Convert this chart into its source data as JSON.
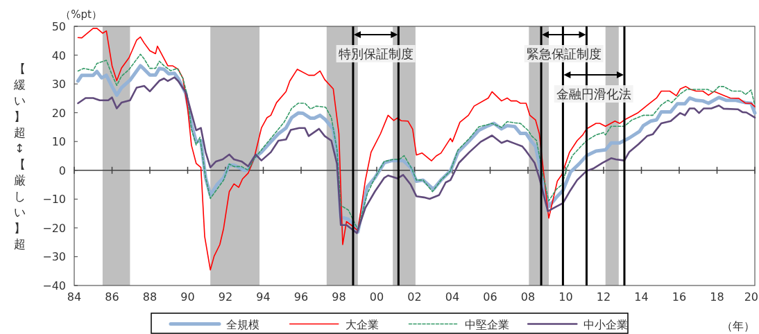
{
  "chart_data": {
    "type": "line",
    "xlabel": "（年）",
    "ylabel": "【緩い】超↕【厳しい】超",
    "annotations": [
      "（%pt）"
    ],
    "xlim": [
      1984,
      2020
    ],
    "ylim": [
      -40,
      50
    ],
    "xticks": [
      {
        "value": 1984,
        "label": "84"
      },
      {
        "value": 1986,
        "label": "86"
      },
      {
        "value": 1988,
        "label": "88"
      },
      {
        "value": 1990,
        "label": "90"
      },
      {
        "value": 1992,
        "label": "92"
      },
      {
        "value": 1994,
        "label": "94"
      },
      {
        "value": 1996,
        "label": "96"
      },
      {
        "value": 1998,
        "label": "98"
      },
      {
        "value": 2000,
        "label": "00"
      },
      {
        "value": 2002,
        "label": "02"
      },
      {
        "value": 2004,
        "label": "04"
      },
      {
        "value": 2006,
        "label": "06"
      },
      {
        "value": 2008,
        "label": "08"
      },
      {
        "value": 2010,
        "label": "10"
      },
      {
        "value": 2012,
        "label": "12"
      },
      {
        "value": 2014,
        "label": "14"
      },
      {
        "value": 2016,
        "label": "16"
      },
      {
        "value": 2018,
        "label": "18"
      },
      {
        "value": 2020,
        "label": "20"
      }
    ],
    "yticks": [
      {
        "value": -40,
        "label": "−40"
      },
      {
        "value": -30,
        "label": "−30"
      },
      {
        "value": -20,
        "label": "−20"
      },
      {
        "value": -10,
        "label": "−10"
      },
      0,
      10,
      20,
      30,
      40,
      50
    ],
    "legend": "bottom",
    "bands": [
      {
        "axis": "x",
        "from": 1985.5,
        "to": 1986.95,
        "color": "#bfbfbf"
      },
      {
        "axis": "x",
        "from": 1991.2,
        "to": 1993.8,
        "color": "#bfbfbf"
      },
      {
        "axis": "x",
        "from": 1997.35,
        "to": 1999.0,
        "color": "#bfbfbf"
      },
      {
        "axis": "x",
        "from": 2000.85,
        "to": 2002.05,
        "color": "#bfbfbf"
      },
      {
        "axis": "x",
        "from": 2008.05,
        "to": 2009.1,
        "color": "#bfbfbf"
      },
      {
        "axis": "x",
        "from": 2012.1,
        "to": 2012.8,
        "color": "#bfbfbf"
      }
    ],
    "ref_lines": [
      {
        "axis": "x",
        "value": 1998.75,
        "label": "特別保証制度",
        "color": "#000000"
      },
      {
        "axis": "x",
        "value": 2001.15,
        "color": "#000000"
      },
      {
        "axis": "x",
        "value": 2008.7,
        "label": "緊急保証制度",
        "color": "#000000"
      },
      {
        "axis": "x",
        "value": 2009.85,
        "label": "金融円滑化法",
        "color": "#000000"
      },
      {
        "axis": "x",
        "value": 2011.1,
        "color": "#000000"
      },
      {
        "axis": "x",
        "value": 2013.1,
        "color": "#000000"
      }
    ],
    "series": [
      {
        "name": "全規模",
        "color": "#95b3d7",
        "line_style": "solid",
        "x": [
          1984.2,
          1984.4,
          1985.0,
          1985.2,
          1985.45,
          1985.7,
          1986.0,
          1986.25,
          1986.5,
          1986.95,
          1987.5,
          1987.7,
          1988.0,
          1988.3,
          1988.5,
          1988.75,
          1989.0,
          1989.3,
          1989.5,
          1989.9,
          1990.2,
          1990.45,
          1990.7,
          1990.95,
          1991.2,
          1991.55,
          1991.9,
          1992.2,
          1992.45,
          1992.7,
          1993.0,
          1993.2,
          1993.5,
          1993.9,
          1994.4,
          1994.8,
          1995.2,
          1995.5,
          1995.85,
          1996.1,
          1996.5,
          1996.7,
          1997.0,
          1997.3,
          1997.7,
          1997.9,
          1998.1,
          1998.5,
          1998.8,
          1999.0,
          1999.5,
          1999.9,
          2000.4,
          2000.8,
          2001.4,
          2001.8,
          2002.1,
          2002.45,
          2003.0,
          2003.4,
          2003.9,
          2004.3,
          2004.9,
          2005.4,
          2005.9,
          2006.2,
          2006.6,
          2006.9,
          2007.3,
          2007.6,
          2007.9,
          2008.15,
          2008.4,
          2008.75,
          2009.1,
          2009.5,
          2009.85,
          2010.25,
          2010.7,
          2011.1,
          2011.6,
          2012.1,
          2012.4,
          2012.85,
          2013.35,
          2013.9,
          2014.1,
          2014.5,
          2014.8,
          2015.05,
          2015.55,
          2015.9,
          2016.3,
          2016.55,
          2016.9,
          2017.25,
          2017.55,
          2018.1,
          2018.5,
          2019.0,
          2019.5,
          2019.8,
          2020.0
        ],
        "values": [
          31.0,
          33.0,
          33.0,
          34.3,
          32.1,
          33.0,
          29.1,
          26.1,
          28.7,
          31.3,
          36.3,
          35.1,
          33.1,
          33.1,
          35.4,
          35.1,
          33.5,
          33.7,
          31.9,
          26.7,
          15.9,
          9.9,
          10.3,
          -2.6,
          -8.6,
          -5.0,
          -2.6,
          1.8,
          1.8,
          1.0,
          0,
          0.2,
          4.2,
          6.3,
          9.9,
          12.7,
          14.7,
          18.3,
          19.9,
          19.8,
          18.1,
          18.1,
          19.1,
          17.5,
          14.3,
          5.5,
          -16.2,
          -17.0,
          -19.0,
          -21.4,
          -5.8,
          -2.6,
          2.6,
          3.4,
          3.4,
          1.0,
          -3.8,
          -3.4,
          -6.6,
          -3.4,
          -0.2,
          6.3,
          10.3,
          13.9,
          15.5,
          16.3,
          14.4,
          15.5,
          15.2,
          12.8,
          12.8,
          10.3,
          8.3,
          -2.6,
          -12.6,
          -9.4,
          -7.0,
          -0.6,
          2.2,
          5.1,
          6.7,
          7.1,
          9.5,
          9.5,
          11.2,
          13.5,
          15.5,
          17.1,
          17.5,
          20.3,
          20.3,
          23.1,
          23.1,
          25.1,
          24.3,
          24.1,
          23.3,
          25.3,
          24.3,
          24.3,
          23.5,
          23.3,
          19.9
        ]
      },
      {
        "name": "大企業",
        "color": "#ff0000",
        "line_style": "solid",
        "x": [
          1984.2,
          1984.4,
          1985.0,
          1985.2,
          1985.5,
          1985.7,
          1986.0,
          1986.25,
          1986.5,
          1986.9,
          1987.3,
          1987.5,
          1987.7,
          1988.0,
          1988.3,
          1988.4,
          1988.95,
          1989.2,
          1989.5,
          1989.75,
          1990.0,
          1990.2,
          1990.45,
          1990.7,
          1990.9,
          1991.2,
          1991.4,
          1991.7,
          1991.9,
          1992.2,
          1992.45,
          1992.7,
          1992.9,
          1993.2,
          1993.5,
          1993.9,
          1994.2,
          1994.4,
          1994.7,
          1995.2,
          1995.4,
          1995.8,
          1996.4,
          1996.7,
          1997.0,
          1997.25,
          1997.7,
          1998.0,
          1998.2,
          1998.4,
          1998.8,
          1999.0,
          1999.4,
          1999.7,
          2000.2,
          2000.6,
          2000.9,
          2001.1,
          2001.3,
          2001.65,
          2001.9,
          2002.1,
          2002.4,
          2002.9,
          2003.15,
          2003.4,
          2003.9,
          2004.0,
          2004.4,
          2004.85,
          2005.15,
          2005.9,
          2006.1,
          2006.6,
          2006.9,
          2007.1,
          2007.4,
          2007.6,
          2007.9,
          2008.1,
          2008.4,
          2008.6,
          2008.75,
          2009.1,
          2009.55,
          2009.8,
          2010.2,
          2010.6,
          2010.9,
          2011.1,
          2011.6,
          2011.8,
          2012.1,
          2012.6,
          2012.85,
          2013.1,
          2013.8,
          2014.4,
          2014.8,
          2015.05,
          2015.5,
          2015.85,
          2016.06,
          2016.35,
          2016.6,
          2016.9,
          2017.25,
          2017.55,
          2017.85,
          2018.4,
          2018.7,
          2019.15,
          2019.5,
          2019.8,
          2020.0
        ],
        "values": [
          46.1,
          46,
          49.3,
          49.3,
          47.6,
          48.4,
          36.3,
          31.1,
          35.5,
          39.1,
          45.2,
          46.3,
          44.2,
          41.5,
          40.5,
          43.1,
          36.3,
          36.3,
          35.1,
          31.9,
          21.5,
          8.7,
          2.4,
          1.0,
          -23,
          -34.6,
          -29.8,
          -25.8,
          -20.2,
          -7.4,
          -4.7,
          -5.9,
          -3.0,
          -1.0,
          3.8,
          14.7,
          18.3,
          19.1,
          23.5,
          27.3,
          31,
          35.1,
          33,
          33,
          34.5,
          31.5,
          28.3,
          12.7,
          -25.8,
          -17.8,
          -19.8,
          -21,
          -3.4,
          6.3,
          12.7,
          19.1,
          17.3,
          18.2,
          17.2,
          17.1,
          14.3,
          5.3,
          6.0,
          3.3,
          5.0,
          6.0,
          11.1,
          9.9,
          16.7,
          19.1,
          22.3,
          25.1,
          27.3,
          24.1,
          25.1,
          24.1,
          24.1,
          23.3,
          23.3,
          19.1,
          17.5,
          12.7,
          3.8,
          -16.6,
          -3.8,
          -1.4,
          6.3,
          10.3,
          12.3,
          14.4,
          16.3,
          16.3,
          15.3,
          17.1,
          16.3,
          17.5,
          19.9,
          23.1,
          25.1,
          27.5,
          27.5,
          25.9,
          28.3,
          29.1,
          28.1,
          27.5,
          27.5,
          26.1,
          27.4,
          25.9,
          25.1,
          25.0,
          23.3,
          23.3,
          22.1
        ]
      },
      {
        "name": "中堅企業",
        "color": "#339966",
        "line_style": "dashed",
        "x": [
          1984.2,
          1984.5,
          1985.0,
          1985.2,
          1985.7,
          1986.0,
          1986.25,
          1986.5,
          1986.9,
          1987.5,
          1987.7,
          1988.0,
          1988.3,
          1988.5,
          1988.75,
          1989.1,
          1989.45,
          1989.75,
          1990.0,
          1990.2,
          1990.45,
          1990.65,
          1990.95,
          1991.2,
          1991.55,
          1991.9,
          1992.2,
          1992.45,
          1992.85,
          1993.2,
          1993.5,
          1993.9,
          1994.4,
          1994.8,
          1995.1,
          1995.5,
          1995.85,
          1996.2,
          1996.5,
          1996.8,
          1997.3,
          1997.6,
          1997.9,
          1998.1,
          1998.5,
          1998.8,
          1999.0,
          1999.5,
          1999.9,
          2000.4,
          2000.9,
          2001.2,
          2001.45,
          2001.85,
          2002.1,
          2002.45,
          2002.95,
          2003.4,
          2003.9,
          2004.3,
          2004.9,
          2005.4,
          2005.9,
          2006.1,
          2006.6,
          2006.9,
          2007.3,
          2007.6,
          2008.0,
          2008.2,
          2008.45,
          2008.8,
          2009.1,
          2009.5,
          2009.8,
          2010.05,
          2010.35,
          2010.8,
          2011.1,
          2011.6,
          2012.0,
          2012.1,
          2012.4,
          2013.1,
          2013.5,
          2014.1,
          2014.6,
          2015.05,
          2015.4,
          2015.6,
          2016.05,
          2016.4,
          2016.9,
          2017.5,
          2017.8,
          2018.1,
          2018.35,
          2018.8,
          2019.3,
          2019.5,
          2019.8,
          2020.0
        ],
        "values": [
          34.5,
          35.4,
          34.7,
          37.1,
          38.2,
          33.1,
          29.5,
          32.7,
          35.0,
          40.3,
          38.7,
          35.4,
          35.4,
          37.9,
          36.3,
          34.6,
          35.4,
          31.9,
          25.5,
          14.3,
          8.8,
          11.5,
          -2.6,
          -9.8,
          -6.6,
          -3.4,
          2.2,
          1.3,
          1.3,
          0,
          3.8,
          7.1,
          11.1,
          14.3,
          16.7,
          21.5,
          23.3,
          23.3,
          21.3,
          22.3,
          21.9,
          18.3,
          7.1,
          -12.2,
          -13.8,
          -17.8,
          -20.6,
          -8.2,
          -2.6,
          3.1,
          3.8,
          3.8,
          5.1,
          0.6,
          -3.4,
          -3.4,
          -7.4,
          -3.4,
          -0.2,
          7.1,
          11.1,
          15.1,
          15.9,
          16.3,
          14.9,
          16.9,
          16.5,
          16.3,
          13.9,
          11.9,
          10.4,
          -1.8,
          -10.6,
          -6.6,
          -5.0,
          0.6,
          5.1,
          8.3,
          10.3,
          12.3,
          13.1,
          12.3,
          15.3,
          15.3,
          17.5,
          19.1,
          19.1,
          22.7,
          24.3,
          23.5,
          26.5,
          28.1,
          28.1,
          28.1,
          27.1,
          29.1,
          29.1,
          27.5,
          27.5,
          26.3,
          27.9,
          22.7
        ]
      },
      {
        "name": "中小企業",
        "color": "#604a7b",
        "line_style": "solid",
        "x": [
          1984.2,
          1984.6,
          1985.0,
          1985.35,
          1985.8,
          1986.0,
          1986.25,
          1986.5,
          1986.95,
          1987.3,
          1987.7,
          1988.0,
          1988.5,
          1988.75,
          1988.95,
          1989.3,
          1989.5,
          1989.9,
          1990.2,
          1990.45,
          1990.7,
          1990.95,
          1991.2,
          1991.5,
          1991.85,
          1992.2,
          1992.45,
          1992.85,
          1993.2,
          1993.6,
          1993.9,
          1994.4,
          1994.8,
          1995.2,
          1995.45,
          1995.9,
          1996.2,
          1996.4,
          1996.95,
          1997.25,
          1997.6,
          1997.9,
          1998.1,
          1998.4,
          1998.95,
          1999.4,
          1999.9,
          2000.4,
          2000.6,
          2001.1,
          2001.4,
          2001.8,
          2002.1,
          2002.5,
          2002.8,
          2003.3,
          2003.65,
          2003.9,
          2004.35,
          2004.9,
          2005.5,
          2006.1,
          2006.6,
          2006.9,
          2007.3,
          2007.7,
          2007.9,
          2008.35,
          2008.6,
          2009.05,
          2009.5,
          2009.85,
          2010.2,
          2010.6,
          2011.1,
          2011.45,
          2011.95,
          2012.4,
          2012.65,
          2013.1,
          2013.35,
          2013.85,
          2014.3,
          2014.6,
          2015.05,
          2015.55,
          2016.05,
          2016.3,
          2016.55,
          2016.8,
          2017.05,
          2017.3,
          2017.7,
          2018.1,
          2018.35,
          2019.1,
          2019.35,
          2019.55,
          2020.0
        ],
        "values": [
          23.3,
          25.1,
          25.1,
          24.3,
          24.3,
          25.3,
          21.5,
          23.5,
          24.3,
          28.7,
          29.3,
          27.4,
          31.1,
          31.9,
          31.0,
          32.3,
          31.0,
          27.1,
          19.9,
          13.9,
          14.7,
          6.3,
          1.0,
          3.1,
          3.8,
          5.5,
          3.8,
          3.1,
          1.4,
          5.5,
          3.4,
          6.3,
          10.3,
          10.7,
          14.0,
          14.7,
          14.7,
          11.9,
          14.4,
          11.9,
          10.3,
          2.2,
          -19.0,
          -19.0,
          -21.8,
          -13.0,
          -7.4,
          -2.6,
          -1.8,
          -2.8,
          -1.6,
          -5.0,
          -9.0,
          -9.4,
          -9.9,
          -8.6,
          -4.2,
          -3.4,
          2.6,
          6.3,
          9.9,
          12.1,
          9.5,
          10.3,
          9.3,
          8.3,
          6.7,
          2.6,
          -2.6,
          -14.2,
          -12.6,
          -11.4,
          -7.4,
          -3.4,
          -0.2,
          0.6,
          2.6,
          4.2,
          3.8,
          3.4,
          6.3,
          9.1,
          11.9,
          12.5,
          16.3,
          17.1,
          19.9,
          19.1,
          21.5,
          21.5,
          19.9,
          21.5,
          21.5,
          22.5,
          21.4,
          21.2,
          20.2,
          20.1,
          18.3
        ]
      }
    ]
  }
}
